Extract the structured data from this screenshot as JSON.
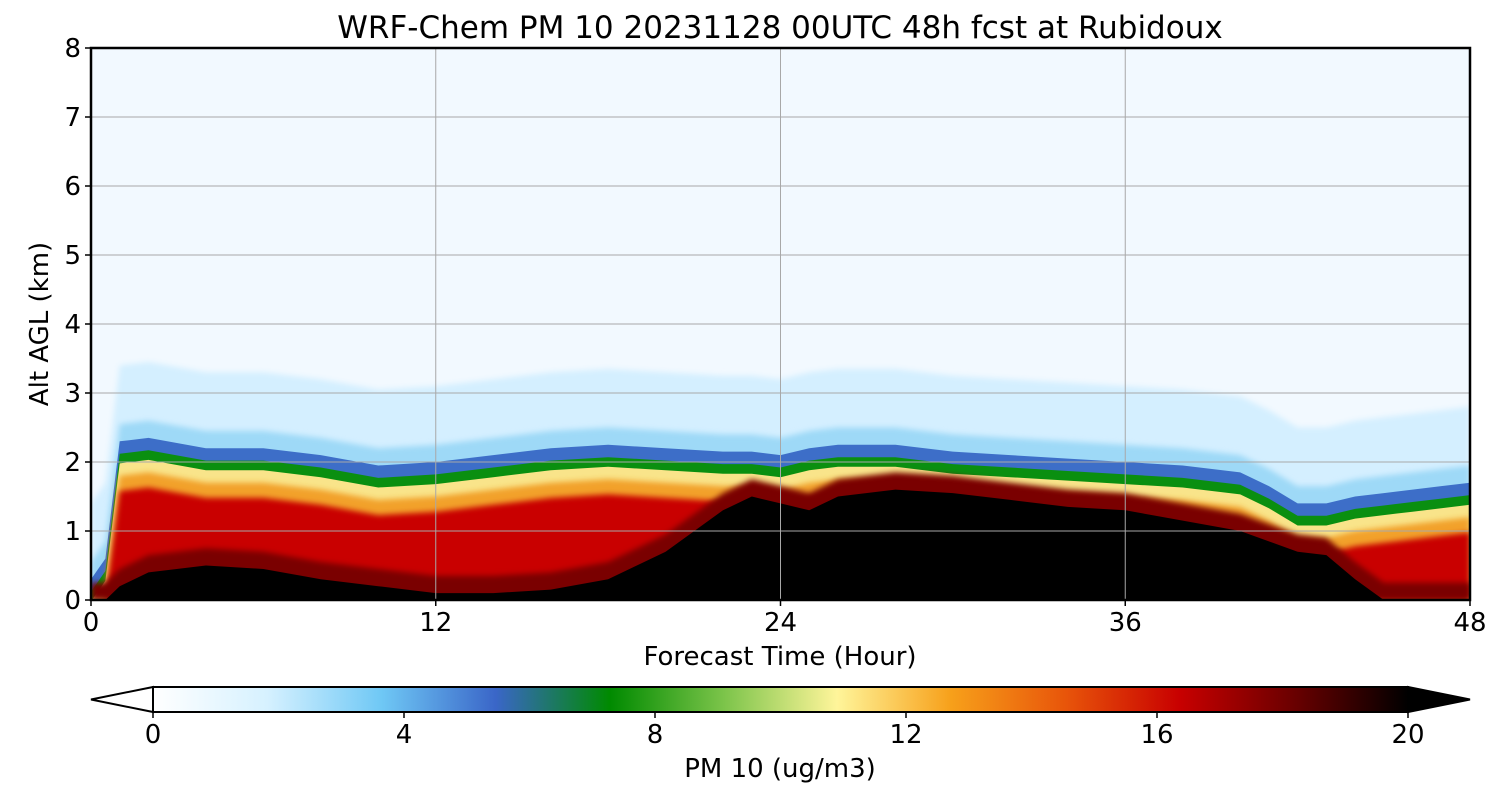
{
  "chart_data": {
    "type": "heatmap",
    "title": "WRF-Chem PM 10  20231128 00UTC 48h fcst at Rubidoux",
    "xlabel": "Forecast Time (Hour)",
    "ylabel": "Alt AGL (km)",
    "xlim": [
      0,
      48
    ],
    "ylim": [
      0,
      8
    ],
    "xticks": [
      0,
      12,
      24,
      36,
      48
    ],
    "yticks": [
      0,
      1,
      2,
      3,
      4,
      5,
      6,
      7,
      8
    ],
    "grid": true,
    "colorbar": {
      "label": "PM 10  (ug/m3)",
      "range": [
        0,
        20
      ],
      "ticks": [
        0,
        4,
        8,
        12,
        16,
        20
      ],
      "orientation": "horizontal",
      "extend": "both",
      "colors": [
        "#ffffff",
        "#d6f1ff",
        "#6fc8f5",
        "#3a66c8",
        "#008a00",
        "#7cc44a",
        "#fff59a",
        "#f7a01a",
        "#e8550a",
        "#c80000",
        "#6a0000",
        "#000000"
      ]
    },
    "profile": {
      "hours": [
        0,
        0.5,
        1,
        2,
        4,
        6,
        8,
        10,
        12,
        14,
        16,
        18,
        20,
        22,
        23,
        24,
        25,
        26,
        28,
        30,
        32,
        34,
        36,
        38,
        40,
        41,
        42,
        43,
        44,
        45,
        46,
        47,
        48
      ],
      "mixing_top_km": [
        0,
        0.3,
        2.0,
        2.05,
        1.9,
        1.9,
        1.8,
        1.65,
        1.7,
        1.8,
        1.9,
        1.95,
        1.9,
        1.85,
        1.85,
        1.8,
        1.9,
        1.95,
        1.95,
        1.85,
        1.8,
        1.75,
        1.7,
        1.65,
        1.55,
        1.35,
        1.1,
        1.1,
        1.2,
        1.25,
        1.3,
        1.35,
        1.4
      ],
      "black_core_top_km": [
        0,
        0,
        0.2,
        0.4,
        0.5,
        0.45,
        0.3,
        0.2,
        0.1,
        0.1,
        0.15,
        0.3,
        0.7,
        1.3,
        1.5,
        1.4,
        1.3,
        1.5,
        1.6,
        1.55,
        1.45,
        1.35,
        1.3,
        1.15,
        1.0,
        0.85,
        0.7,
        0.65,
        0.3,
        0,
        0,
        0,
        0
      ]
    }
  }
}
